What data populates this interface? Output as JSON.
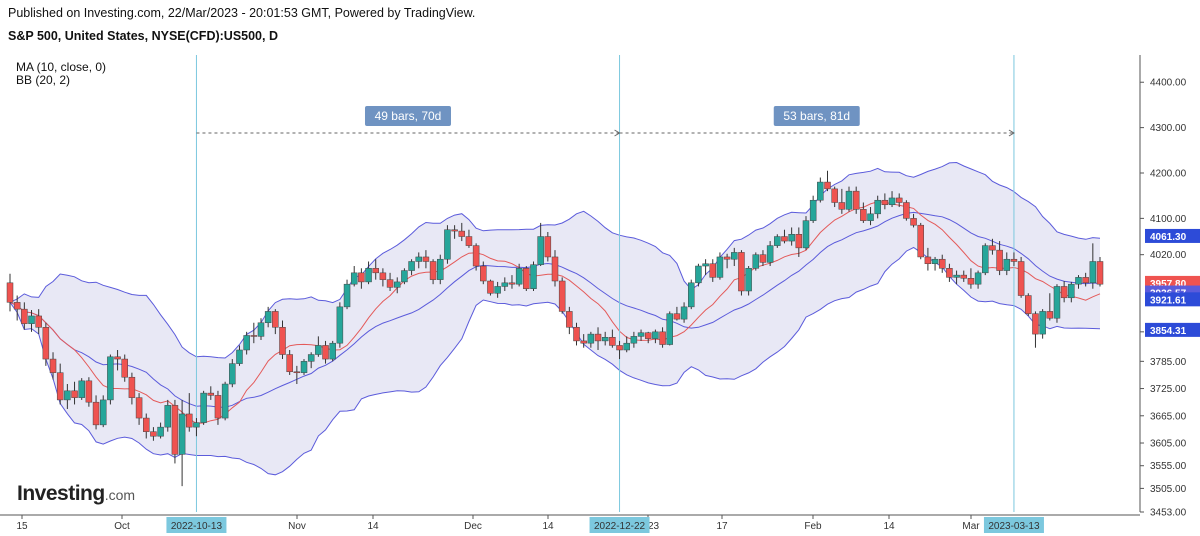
{
  "header": {
    "published": "Published on Investing.com, 22/Mar/2023 - 20:01:53 GMT, Powered by TradingView.",
    "symbol": "S&P 500, United States, NYSE(CFD):US500, D"
  },
  "indicators": {
    "ma": "MA (10, close, 0)",
    "bb": "BB (20, 2)"
  },
  "logo": {
    "main": "Investing",
    "suffix": ".com"
  },
  "colors": {
    "up": "#26a69a",
    "down": "#ef5350",
    "ma": "#e45a5a",
    "bb": "#5b5bdb",
    "bb_fill": "#e8e8f5",
    "vline": "#7cc8de",
    "range_label": "#6f93c2"
  },
  "chart_data": {
    "type": "candlestick",
    "ylim": [
      3453,
      4460
    ],
    "y_ticks": [
      "4400.00",
      "4300.00",
      "4200.00",
      "4100.00",
      "4020.00",
      "3850.00",
      "3785.00",
      "3725.00",
      "3665.00",
      "3605.00",
      "3555.00",
      "3505.00",
      "3453.00"
    ],
    "x_ticks": [
      "15",
      "Oct",
      "Nov",
      "14",
      "Dec",
      "14",
      "2023",
      "17",
      "Feb",
      "14",
      "Mar"
    ],
    "highlighted_dates": [
      "2022-10-13",
      "2022-12-22",
      "2023-03-13"
    ],
    "price_labels": [
      {
        "text": "4061.30",
        "color": "#2d4bd8",
        "value": 4061.3
      },
      {
        "text": "3957.80",
        "color": "#ef5350",
        "value": 3957.8
      },
      {
        "text": "3936.57",
        "color": "#5b5bdb",
        "value": 3936.57
      },
      {
        "text": "3921.61",
        "color": "#2d4bd8",
        "value": 3921.61
      },
      {
        "text": "3854.31",
        "color": "#2d4bd8",
        "value": 3854.31
      }
    ],
    "range_labels": [
      "49 bars, 70d",
      "53 bars, 81d"
    ],
    "candles": [
      [
        3958,
        3978,
        3895,
        3915
      ],
      [
        3915,
        3930,
        3875,
        3900
      ],
      [
        3900,
        3915,
        3855,
        3868
      ],
      [
        3868,
        3898,
        3850,
        3885
      ],
      [
        3885,
        3900,
        3845,
        3860
      ],
      [
        3860,
        3870,
        3775,
        3790
      ],
      [
        3790,
        3805,
        3745,
        3760
      ],
      [
        3760,
        3780,
        3690,
        3700
      ],
      [
        3700,
        3735,
        3680,
        3720
      ],
      [
        3720,
        3740,
        3690,
        3705
      ],
      [
        3705,
        3748,
        3700,
        3742
      ],
      [
        3742,
        3750,
        3685,
        3695
      ],
      [
        3695,
        3710,
        3635,
        3645
      ],
      [
        3645,
        3710,
        3640,
        3700
      ],
      [
        3700,
        3800,
        3690,
        3795
      ],
      [
        3795,
        3810,
        3765,
        3790
      ],
      [
        3790,
        3800,
        3740,
        3750
      ],
      [
        3750,
        3760,
        3690,
        3705
      ],
      [
        3705,
        3715,
        3645,
        3660
      ],
      [
        3660,
        3670,
        3615,
        3630
      ],
      [
        3630,
        3640,
        3610,
        3620
      ],
      [
        3620,
        3650,
        3615,
        3640
      ],
      [
        3640,
        3700,
        3630,
        3688
      ],
      [
        3688,
        3700,
        3560,
        3580
      ],
      [
        3580,
        3700,
        3510,
        3669
      ],
      [
        3669,
        3715,
        3630,
        3640
      ],
      [
        3640,
        3660,
        3620,
        3650
      ],
      [
        3650,
        3720,
        3645,
        3715
      ],
      [
        3715,
        3730,
        3700,
        3710
      ],
      [
        3710,
        3720,
        3645,
        3660
      ],
      [
        3660,
        3740,
        3655,
        3735
      ],
      [
        3735,
        3790,
        3728,
        3780
      ],
      [
        3780,
        3820,
        3775,
        3810
      ],
      [
        3810,
        3850,
        3800,
        3842
      ],
      [
        3842,
        3870,
        3825,
        3840
      ],
      [
        3840,
        3880,
        3832,
        3870
      ],
      [
        3870,
        3905,
        3860,
        3895
      ],
      [
        3895,
        3900,
        3845,
        3860
      ],
      [
        3860,
        3875,
        3790,
        3800
      ],
      [
        3800,
        3810,
        3755,
        3762
      ],
      [
        3762,
        3775,
        3735,
        3760
      ],
      [
        3760,
        3790,
        3755,
        3785
      ],
      [
        3785,
        3805,
        3770,
        3800
      ],
      [
        3800,
        3840,
        3795,
        3820
      ],
      [
        3820,
        3830,
        3780,
        3790
      ],
      [
        3790,
        3830,
        3785,
        3825
      ],
      [
        3825,
        3915,
        3815,
        3905
      ],
      [
        3905,
        3965,
        3900,
        3955
      ],
      [
        3955,
        3995,
        3950,
        3980
      ],
      [
        3980,
        3990,
        3945,
        3960
      ],
      [
        3960,
        4005,
        3955,
        3990
      ],
      [
        3990,
        4010,
        3965,
        3980
      ],
      [
        3980,
        3990,
        3950,
        3965
      ],
      [
        3965,
        3980,
        3940,
        3948
      ],
      [
        3948,
        3970,
        3935,
        3960
      ],
      [
        3960,
        3990,
        3955,
        3985
      ],
      [
        3985,
        4010,
        3975,
        4005
      ],
      [
        4005,
        4025,
        3990,
        4015
      ],
      [
        4015,
        4030,
        3990,
        4005
      ],
      [
        4005,
        4010,
        3955,
        3965
      ],
      [
        3965,
        4020,
        3955,
        4010
      ],
      [
        4010,
        4085,
        4000,
        4075
      ],
      [
        4075,
        4085,
        4055,
        4072
      ],
      [
        4072,
        4090,
        4050,
        4060
      ],
      [
        4060,
        4075,
        4035,
        4040
      ],
      [
        4040,
        4045,
        3985,
        3995
      ],
      [
        3995,
        4005,
        3955,
        3962
      ],
      [
        3962,
        3965,
        3930,
        3935
      ],
      [
        3935,
        3960,
        3925,
        3950
      ],
      [
        3950,
        3970,
        3940,
        3958
      ],
      [
        3958,
        3975,
        3945,
        3955
      ],
      [
        3955,
        4000,
        3950,
        3990
      ],
      [
        3990,
        3995,
        3940,
        3945
      ],
      [
        3945,
        4005,
        3940,
        3998
      ],
      [
        3998,
        4090,
        3995,
        4060
      ],
      [
        4060,
        4070,
        4005,
        4015
      ],
      [
        4015,
        4030,
        3950,
        3962
      ],
      [
        3962,
        3970,
        3890,
        3895
      ],
      [
        3895,
        3905,
        3845,
        3860
      ],
      [
        3860,
        3870,
        3820,
        3830
      ],
      [
        3830,
        3845,
        3815,
        3825
      ],
      [
        3825,
        3850,
        3815,
        3845
      ],
      [
        3845,
        3860,
        3810,
        3830
      ],
      [
        3830,
        3850,
        3820,
        3838
      ],
      [
        3838,
        3855,
        3815,
        3820
      ],
      [
        3820,
        3830,
        3790,
        3810
      ],
      [
        3810,
        3840,
        3805,
        3825
      ],
      [
        3825,
        3850,
        3815,
        3840
      ],
      [
        3840,
        3855,
        3830,
        3848
      ],
      [
        3848,
        3850,
        3825,
        3835
      ],
      [
        3835,
        3855,
        3825,
        3850
      ],
      [
        3850,
        3860,
        3815,
        3822
      ],
      [
        3822,
        3895,
        3820,
        3890
      ],
      [
        3890,
        3905,
        3875,
        3878
      ],
      [
        3878,
        3915,
        3870,
        3905
      ],
      [
        3905,
        3965,
        3900,
        3958
      ],
      [
        3958,
        4000,
        3950,
        3995
      ],
      [
        3995,
        4010,
        3975,
        4000
      ],
      [
        4000,
        4010,
        3960,
        3970
      ],
      [
        3970,
        4025,
        3965,
        4015
      ],
      [
        4015,
        4022,
        3990,
        4010
      ],
      [
        4010,
        4035,
        3995,
        4025
      ],
      [
        4025,
        4030,
        3930,
        3940
      ],
      [
        3940,
        3995,
        3930,
        3990
      ],
      [
        3990,
        4025,
        3985,
        4020
      ],
      [
        4020,
        4030,
        3995,
        4003
      ],
      [
        4003,
        4050,
        3995,
        4040
      ],
      [
        4040,
        4065,
        4035,
        4060
      ],
      [
        4060,
        4075,
        4045,
        4050
      ],
      [
        4050,
        4080,
        4040,
        4065
      ],
      [
        4065,
        4080,
        4015,
        4035
      ],
      [
        4035,
        4105,
        4030,
        4095
      ],
      [
        4095,
        4150,
        4090,
        4140
      ],
      [
        4140,
        4190,
        4135,
        4180
      ],
      [
        4180,
        4205,
        4160,
        4165
      ],
      [
        4165,
        4170,
        4125,
        4135
      ],
      [
        4135,
        4165,
        4110,
        4120
      ],
      [
        4120,
        4170,
        4115,
        4160
      ],
      [
        4160,
        4170,
        4110,
        4120
      ],
      [
        4120,
        4135,
        4090,
        4095
      ],
      [
        4095,
        4125,
        4085,
        4110
      ],
      [
        4110,
        4150,
        4100,
        4140
      ],
      [
        4140,
        4155,
        4120,
        4130
      ],
      [
        4130,
        4160,
        4125,
        4145
      ],
      [
        4145,
        4155,
        4125,
        4135
      ],
      [
        4135,
        4140,
        4095,
        4100
      ],
      [
        4100,
        4110,
        4080,
        4085
      ],
      [
        4085,
        4090,
        4010,
        4015
      ],
      [
        4015,
        4035,
        3985,
        4000
      ],
      [
        4000,
        4015,
        3985,
        4010
      ],
      [
        4010,
        4020,
        3980,
        3990
      ],
      [
        3990,
        4000,
        3960,
        3970
      ],
      [
        3970,
        3985,
        3955,
        3975
      ],
      [
        3975,
        3985,
        3960,
        3968
      ],
      [
        3968,
        3990,
        3945,
        3955
      ],
      [
        3955,
        3985,
        3945,
        3980
      ],
      [
        3980,
        4045,
        3975,
        4040
      ],
      [
        4040,
        4055,
        4020,
        4030
      ],
      [
        4030,
        4050,
        3975,
        3985
      ],
      [
        3985,
        4025,
        3975,
        4010
      ],
      [
        4010,
        4025,
        3995,
        4005
      ],
      [
        4005,
        4015,
        3925,
        3930
      ],
      [
        3930,
        3935,
        3885,
        3890
      ],
      [
        3890,
        3895,
        3815,
        3845
      ],
      [
        3845,
        3900,
        3835,
        3895
      ],
      [
        3895,
        3935,
        3875,
        3880
      ],
      [
        3880,
        3955,
        3870,
        3950
      ],
      [
        3950,
        3962,
        3915,
        3925
      ],
      [
        3925,
        3960,
        3915,
        3955
      ],
      [
        3955,
        3975,
        3945,
        3970
      ],
      [
        3970,
        3980,
        3950,
        3958
      ],
      [
        3958,
        4045,
        3945,
        4005
      ],
      [
        4005,
        4015,
        3950,
        3955
      ]
    ]
  }
}
